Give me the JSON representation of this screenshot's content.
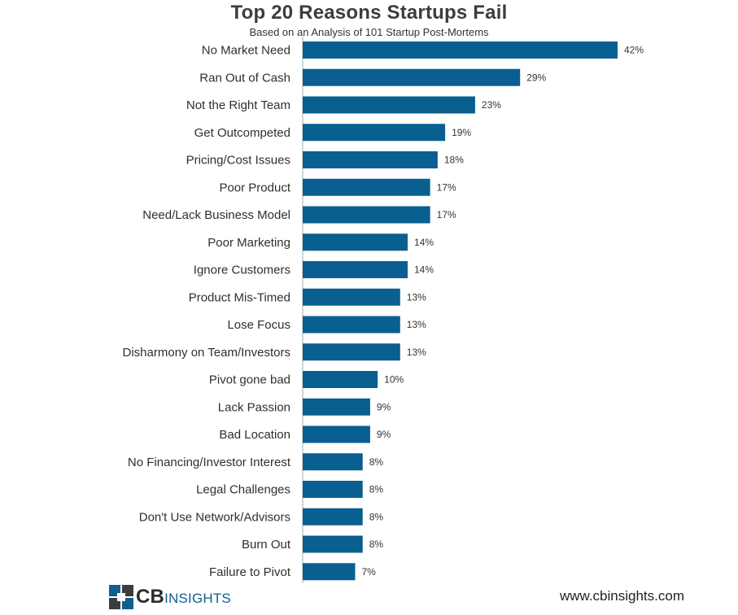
{
  "header": {
    "title": "Top 20 Reasons Startups Fail",
    "subtitle": "Based on an Analysis of 101 Startup Post-Mortems"
  },
  "chart_data": {
    "type": "bar",
    "orientation": "horizontal",
    "title": "Top 20 Reasons Startups Fail",
    "subtitle": "Based on an Analysis of 101 Startup Post-Mortems",
    "categories": [
      "No Market Need",
      "Ran Out of Cash",
      "Not the Right Team",
      "Get Outcompeted",
      "Pricing/Cost Issues",
      "Poor Product",
      "Need/Lack Business Model",
      "Poor Marketing",
      "Ignore Customers",
      "Product Mis-Timed",
      "Lose Focus",
      "Disharmony on Team/Investors",
      "Pivot gone bad",
      "Lack Passion",
      "Bad Location",
      "No Financing/Investor Interest",
      "Legal Challenges",
      "Don't Use Network/Advisors",
      "Burn Out",
      "Failure to Pivot"
    ],
    "values": [
      42,
      29,
      23,
      19,
      18,
      17,
      17,
      14,
      14,
      13,
      13,
      13,
      10,
      9,
      9,
      8,
      8,
      8,
      8,
      7
    ],
    "value_labels": [
      "42%",
      "29%",
      "23%",
      "19%",
      "18%",
      "17%",
      "17%",
      "14%",
      "14%",
      "13%",
      "13%",
      "13%",
      "10%",
      "9%",
      "9%",
      "8%",
      "8%",
      "8%",
      "8%",
      "7%"
    ],
    "xlabel": "",
    "ylabel": "",
    "xlim": [
      0,
      42
    ],
    "grid": false,
    "legend": "none",
    "bar_color": "#0a5f91"
  },
  "footer": {
    "logo_cb": "CB",
    "logo_insights": "INSIGHTS",
    "url": "www.cbinsights.com"
  },
  "colors": {
    "bar": "#0a5f91",
    "logo_blue": "#0f5f8f",
    "logo_dark": "#3d3d3d",
    "axis": "#aaaaaa"
  }
}
